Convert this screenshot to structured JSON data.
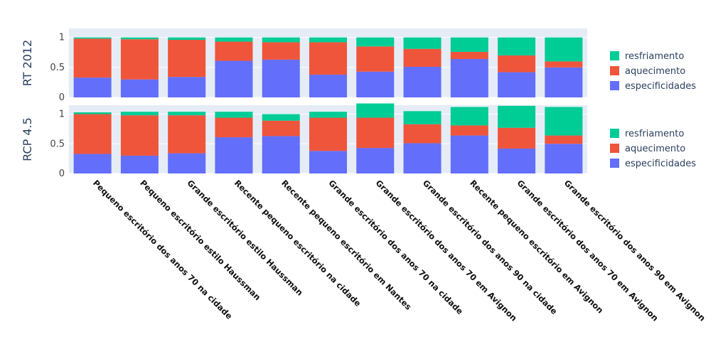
{
  "chart_data": {
    "type": "bar",
    "stacked": true,
    "categories": [
      "Pequeno escritório dos anos 70 na cidade",
      "Pequeno escritório estilo Haussman",
      "Grande escritório estilo Haussman",
      "Recente pequeno escritório na cidade",
      "Recente pequeno escritório em Nantes",
      "Grande escritório dos anos 70 na cidade",
      "Grande escritório dos anos 70 em Avignon",
      "Grande escritório dos anos 90 na cidade",
      "Recente pequeno escritório em Avignon",
      "Grande escritório dos anos 70 em Avignon",
      "Grande escritório dos anos 90 em Avignon"
    ],
    "colors": {
      "especificidades": "#636efa",
      "aquecimento": "#ef553b",
      "resfriamento": "#00cc96",
      "plot_bg": "#e5ecf6"
    },
    "ylim": [
      0,
      1.15
    ],
    "yticks": [
      "0",
      "0.5",
      "1"
    ],
    "panels": [
      {
        "label": "RT 2012",
        "series": [
          {
            "name": "especificidades",
            "values": [
              0.33,
              0.3,
              0.34,
              0.61,
              0.63,
              0.38,
              0.43,
              0.51,
              0.64,
              0.42,
              0.5
            ]
          },
          {
            "name": "aquecimento",
            "values": [
              0.65,
              0.67,
              0.62,
              0.32,
              0.29,
              0.54,
              0.42,
              0.3,
              0.12,
              0.28,
              0.1
            ]
          },
          {
            "name": "resfriamento",
            "values": [
              0.02,
              0.03,
              0.04,
              0.07,
              0.08,
              0.08,
              0.15,
              0.19,
              0.24,
              0.3,
              0.4
            ]
          }
        ]
      },
      {
        "label": "RCP 4.5",
        "series": [
          {
            "name": "especificidades",
            "values": [
              0.33,
              0.3,
              0.34,
              0.61,
              0.63,
              0.38,
              0.43,
              0.51,
              0.64,
              0.42,
              0.5
            ]
          },
          {
            "name": "aquecimento",
            "values": [
              0.67,
              0.68,
              0.64,
              0.33,
              0.26,
              0.56,
              0.51,
              0.32,
              0.17,
              0.35,
              0.14
            ]
          },
          {
            "name": "resfriamento",
            "values": [
              0.03,
              0.06,
              0.06,
              0.1,
              0.11,
              0.1,
              0.24,
              0.22,
              0.31,
              0.37,
              0.48
            ]
          }
        ]
      }
    ],
    "legend": {
      "placement": "right",
      "order": [
        "resfriamento",
        "aquecimento",
        "especificidades"
      ]
    }
  }
}
